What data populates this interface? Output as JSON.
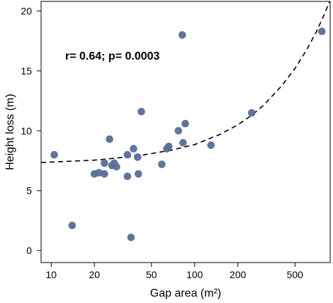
{
  "chart_data": {
    "type": "scatter",
    "xlabel": "Gap area (m²)",
    "ylabel": "Height loss (m)",
    "x_scale": "log",
    "xlim": [
      8.5,
      880
    ],
    "ylim": [
      -1,
      20.8
    ],
    "x_ticks": [
      10,
      20,
      50,
      100,
      200,
      500
    ],
    "y_ticks": [
      0,
      5,
      10,
      15,
      20
    ],
    "grid": false,
    "annotation": "r= 0.64; p= 0.0003",
    "point_color": "#5a6d96",
    "points": [
      {
        "x": 10.5,
        "y": 8.0
      },
      {
        "x": 14.0,
        "y": 2.1
      },
      {
        "x": 20.0,
        "y": 6.4
      },
      {
        "x": 21.5,
        "y": 6.5
      },
      {
        "x": 23.5,
        "y": 6.4
      },
      {
        "x": 23.5,
        "y": 7.3
      },
      {
        "x": 25.5,
        "y": 9.3
      },
      {
        "x": 26.5,
        "y": 7.1
      },
      {
        "x": 27.5,
        "y": 7.3
      },
      {
        "x": 28.5,
        "y": 7.0
      },
      {
        "x": 34.0,
        "y": 8.0
      },
      {
        "x": 34.0,
        "y": 6.2
      },
      {
        "x": 36.0,
        "y": 1.1
      },
      {
        "x": 37.5,
        "y": 8.5
      },
      {
        "x": 40.0,
        "y": 7.8
      },
      {
        "x": 40.5,
        "y": 6.4
      },
      {
        "x": 42.5,
        "y": 11.6
      },
      {
        "x": 59.0,
        "y": 7.2
      },
      {
        "x": 64.0,
        "y": 8.5
      },
      {
        "x": 66.0,
        "y": 8.7
      },
      {
        "x": 77.0,
        "y": 10.0
      },
      {
        "x": 82.0,
        "y": 18.0
      },
      {
        "x": 83.0,
        "y": 9.0
      },
      {
        "x": 86.0,
        "y": 10.6
      },
      {
        "x": 130.0,
        "y": 8.8
      },
      {
        "x": 250.0,
        "y": 11.5
      },
      {
        "x": 770.0,
        "y": 18.3
      }
    ],
    "fit_line": {
      "style": "dashed",
      "x": [
        8.5,
        20,
        40,
        70,
        100,
        150,
        200,
        250,
        300,
        400,
        500,
        600,
        700,
        800,
        880
      ],
      "y": [
        7.35,
        7.55,
        7.9,
        8.4,
        8.85,
        9.7,
        10.5,
        11.3,
        12.1,
        13.7,
        15.2,
        16.7,
        18.2,
        19.7,
        20.9
      ]
    }
  }
}
